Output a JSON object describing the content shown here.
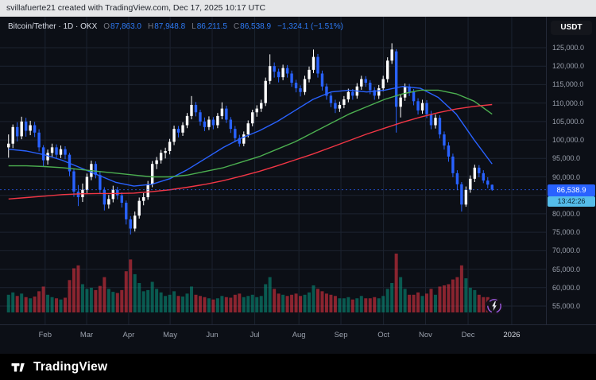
{
  "attribution": "svillafuerte21 created with TradingView.com, Dec 17, 2025 10:17 UTC",
  "header": {
    "currency_label": "USDT"
  },
  "legend": {
    "title": "Bitcoin/Tether · 1D · OKX",
    "ohlc": [
      {
        "label": "O",
        "value": "87,863.0"
      },
      {
        "label": "H",
        "value": "87,948.8"
      },
      {
        "label": "L",
        "value": "86,211.5"
      },
      {
        "label": "C",
        "value": "86,538.9"
      }
    ],
    "change": "−1,324.1 (−1.51%)"
  },
  "price_scale": {
    "current_price": "86,538.9",
    "countdown": "13:42:26"
  },
  "footer": {
    "logo_text": "TradingView"
  },
  "colors": {
    "up": "#ffffff",
    "down": "#2962ff",
    "vol_up": "rgba(8,153,129,0.55)",
    "vol_down": "rgba(242,54,69,0.55)",
    "grid": "#1c2330",
    "axis_text": "#9aa0ac",
    "price_label_bg": "#2962ff",
    "countdown_bg": "#55bdea",
    "ohlc_value": "#2e7bf6"
  },
  "chart_data": {
    "type": "candlestick",
    "title": "Bitcoin/Tether · 1D · OKX",
    "exchange": "OKX",
    "interval": "1D",
    "quote_currency": "USDT",
    "x_range": "mid-Jan 2025 to Dec 17, 2025",
    "last_price": 86538.9,
    "price_factor": 1000,
    "grid": true,
    "y_ticks": [
      125000,
      120000,
      115000,
      110000,
      105000,
      100000,
      95000,
      90000,
      85000,
      80000,
      75000,
      70000,
      65000,
      60000,
      55000
    ],
    "y_tick_labels": [
      "125,000.0",
      "120,000.0",
      "115,000.0",
      "110,000.0",
      "105,000.0",
      "100,000.0",
      "95,000.0",
      "90,000.0",
      "85,000.0",
      "80,000.0",
      "75,000.0",
      "70,000.0",
      "65,000.0",
      "60,000.0",
      "55,000.0"
    ],
    "x_ticks": [
      {
        "label": "Feb",
        "pos": 0.072
      },
      {
        "label": "Mar",
        "pos": 0.149
      },
      {
        "label": "Apr",
        "pos": 0.227
      },
      {
        "label": "May",
        "pos": 0.304
      },
      {
        "label": "Jun",
        "pos": 0.382
      },
      {
        "label": "Jul",
        "pos": 0.461
      },
      {
        "label": "Aug",
        "pos": 0.543
      },
      {
        "label": "Sep",
        "pos": 0.621
      },
      {
        "label": "Oct",
        "pos": 0.7
      },
      {
        "label": "Nov",
        "pos": 0.778
      },
      {
        "label": "Dec",
        "pos": 0.857
      },
      {
        "label": "2026",
        "pos": 0.938,
        "major": true
      }
    ],
    "bars_format": [
      "open_k",
      "high_k",
      "low_k",
      "close_k",
      "volume_relative_0_100"
    ],
    "bars": [
      [
        98,
        101.5,
        95.2,
        99,
        30
      ],
      [
        99,
        104.2,
        97.8,
        103.5,
        34
      ],
      [
        103.5,
        104.8,
        99.6,
        101,
        28
      ],
      [
        101,
        106.3,
        100.2,
        105,
        32
      ],
      [
        105,
        106,
        100.9,
        102.5,
        26
      ],
      [
        102.5,
        105.2,
        101.3,
        104,
        24
      ],
      [
        104,
        104.9,
        100.8,
        102,
        27
      ],
      [
        102,
        102.9,
        96.9,
        98,
        36
      ],
      [
        98,
        98.6,
        92.8,
        94.5,
        44
      ],
      [
        94.5,
        97.4,
        93.3,
        96.5,
        30
      ],
      [
        96.5,
        99,
        95.4,
        98,
        26
      ],
      [
        98,
        98.8,
        94.9,
        96,
        24
      ],
      [
        96,
        98.5,
        95.1,
        97.5,
        22
      ],
      [
        97.5,
        98.3,
        94.8,
        96,
        25
      ],
      [
        96,
        96.5,
        90.2,
        91.5,
        55
      ],
      [
        91.5,
        92.3,
        84.6,
        86,
        75
      ],
      [
        86,
        87.8,
        82.1,
        84.5,
        80
      ],
      [
        84.5,
        88.2,
        83.2,
        86.5,
        48
      ],
      [
        86.5,
        90.9,
        85.6,
        90,
        40
      ],
      [
        90,
        94.4,
        89.1,
        93.5,
        42
      ],
      [
        93.5,
        94.2,
        89.6,
        90.5,
        38
      ],
      [
        90.5,
        91.3,
        85.4,
        86.5,
        45
      ],
      [
        86.5,
        87.2,
        80.9,
        82.5,
        60
      ],
      [
        82.5,
        85.1,
        81.4,
        84,
        40
      ],
      [
        84,
        87.6,
        83.1,
        86.5,
        35
      ],
      [
        86.5,
        87.3,
        83.9,
        85,
        33
      ],
      [
        85,
        85.8,
        81.7,
        83,
        38
      ],
      [
        83,
        83.6,
        77.1,
        78.5,
        70
      ],
      [
        78.5,
        79.4,
        74.4,
        76,
        90
      ],
      [
        76,
        80.6,
        75.2,
        79.5,
        65
      ],
      [
        79.5,
        84.4,
        78.7,
        83.5,
        50
      ],
      [
        83.5,
        85.6,
        82.3,
        84.5,
        36
      ],
      [
        84.5,
        88.9,
        83.8,
        88,
        38
      ],
      [
        88,
        94.3,
        87.2,
        93.5,
        52
      ],
      [
        93.5,
        95.4,
        92.1,
        94.5,
        40
      ],
      [
        94.5,
        97.3,
        93.6,
        96.5,
        34
      ],
      [
        96.5,
        97.9,
        95,
        97,
        28
      ],
      [
        97,
        100.3,
        96.1,
        99.5,
        30
      ],
      [
        99.5,
        103.9,
        98.6,
        103,
        36
      ],
      [
        103,
        103.8,
        100.7,
        102,
        28
      ],
      [
        102,
        104.8,
        101.1,
        104,
        27
      ],
      [
        104,
        107.3,
        103.2,
        106.5,
        32
      ],
      [
        106.5,
        111.9,
        105.6,
        109.5,
        44
      ],
      [
        109.5,
        110.3,
        106.4,
        107.5,
        30
      ],
      [
        107.5,
        108.2,
        103.9,
        105,
        28
      ],
      [
        105,
        106.1,
        102.4,
        103.5,
        26
      ],
      [
        103.5,
        106.4,
        102.7,
        105.5,
        24
      ],
      [
        105.5,
        106.2,
        102.9,
        104,
        22
      ],
      [
        104,
        107.3,
        103.2,
        106.5,
        24
      ],
      [
        106.5,
        110.2,
        105.6,
        108.5,
        28
      ],
      [
        108.5,
        109.3,
        104.6,
        105.5,
        26
      ],
      [
        105.5,
        106.2,
        101.9,
        103,
        25
      ],
      [
        103,
        103.8,
        99.4,
        100.5,
        30
      ],
      [
        100.5,
        101.4,
        98.2,
        99,
        32
      ],
      [
        99,
        102.3,
        98.3,
        101.5,
        26
      ],
      [
        101.5,
        105.3,
        100.7,
        104.5,
        28
      ],
      [
        104.5,
        108.2,
        103.7,
        107.5,
        30
      ],
      [
        107.5,
        109.4,
        106.3,
        108.5,
        26
      ],
      [
        108.5,
        110.9,
        107.6,
        110,
        28
      ],
      [
        110,
        116.9,
        109.2,
        116,
        48
      ],
      [
        116,
        123.2,
        115.1,
        120,
        60
      ],
      [
        120,
        121,
        116.9,
        118.5,
        40
      ],
      [
        118.5,
        119.3,
        115.6,
        117,
        32
      ],
      [
        117,
        120.4,
        116.2,
        119.5,
        30
      ],
      [
        119.5,
        120.3,
        116.9,
        118,
        28
      ],
      [
        118,
        118.8,
        114.4,
        115.5,
        30
      ],
      [
        115.5,
        116.3,
        112.9,
        114,
        32
      ],
      [
        114,
        114.8,
        111.8,
        113,
        28
      ],
      [
        113,
        117.4,
        112.2,
        116.5,
        30
      ],
      [
        116.5,
        119.9,
        115.6,
        119,
        34
      ],
      [
        119,
        124.5,
        118.1,
        122.5,
        46
      ],
      [
        122.5,
        123.3,
        116.9,
        118,
        40
      ],
      [
        118,
        118.8,
        113.4,
        114.5,
        36
      ],
      [
        114.5,
        115.3,
        110.9,
        112,
        32
      ],
      [
        112,
        112.8,
        108.9,
        110,
        30
      ],
      [
        110,
        110.9,
        107.3,
        108.5,
        28
      ],
      [
        108.5,
        110.4,
        107.6,
        109.5,
        24
      ],
      [
        109.5,
        111.9,
        108.6,
        111,
        24
      ],
      [
        111,
        113.9,
        110.2,
        113,
        26
      ],
      [
        113,
        113.8,
        110.9,
        112,
        22
      ],
      [
        112,
        115.4,
        111.2,
        114.5,
        24
      ],
      [
        114.5,
        117.4,
        113.6,
        116.5,
        28
      ],
      [
        116.5,
        117.3,
        114.4,
        115.5,
        24
      ],
      [
        115.5,
        116.2,
        112.4,
        113.5,
        24
      ],
      [
        113.5,
        114.3,
        110.9,
        112,
        26
      ],
      [
        112,
        114.9,
        111.1,
        114,
        24
      ],
      [
        114,
        117.4,
        113.2,
        116.5,
        28
      ],
      [
        116.5,
        122.4,
        115.6,
        121.5,
        40
      ],
      [
        121.5,
        126.2,
        120.6,
        124.5,
        50
      ],
      [
        124,
        124.6,
        102,
        109,
        100
      ],
      [
        109,
        112.4,
        106.1,
        111.5,
        60
      ],
      [
        111.5,
        115.3,
        110.6,
        114.5,
        40
      ],
      [
        114.5,
        115.2,
        111.9,
        113,
        30
      ],
      [
        113,
        113.8,
        109.4,
        110.5,
        30
      ],
      [
        110.5,
        111.3,
        106.9,
        108,
        34
      ],
      [
        108,
        110.9,
        107.1,
        110,
        28
      ],
      [
        110,
        110.8,
        105.9,
        107,
        32
      ],
      [
        107,
        107.9,
        102.9,
        104,
        40
      ],
      [
        104,
        106.9,
        103.1,
        106,
        30
      ],
      [
        106,
        106.7,
        100.4,
        101.5,
        44
      ],
      [
        101.5,
        102.3,
        97.4,
        98.5,
        46
      ],
      [
        98.5,
        99.4,
        94.1,
        95.5,
        48
      ],
      [
        95.5,
        96.3,
        89.9,
        91,
        56
      ],
      [
        91,
        91.8,
        86.4,
        88,
        60
      ],
      [
        88,
        88.6,
        80.6,
        82.5,
        80
      ],
      [
        82.5,
        87.4,
        81.9,
        86.5,
        58
      ],
      [
        86.5,
        90.4,
        85.7,
        89.5,
        42
      ],
      [
        89.5,
        93.3,
        88.6,
        92.5,
        38
      ],
      [
        92.5,
        93.2,
        89.9,
        91,
        30
      ],
      [
        91,
        91.8,
        88.3,
        89,
        26
      ],
      [
        89,
        89.9,
        86.9,
        87.9,
        26
      ],
      [
        87.863,
        87.949,
        86.212,
        86.539,
        24
      ]
    ],
    "ma_lines": [
      {
        "name": "ma-line-fast",
        "color": "#2962ff",
        "values": [
          97.5,
          97,
          96,
          94.5,
          92.5,
          90.5,
          88.5,
          87.5,
          88,
          89.5,
          92,
          95,
          98,
          100.5,
          102.5,
          105,
          108,
          111,
          113,
          113.5,
          113,
          113.5,
          114.5,
          114,
          111.5,
          107,
          100,
          93.5
        ]
      },
      {
        "name": "ma-line-mid",
        "color": "#4caf50",
        "values": [
          93,
          93,
          92.8,
          92.5,
          92,
          91.5,
          91,
          90.5,
          90,
          90,
          90.5,
          91.5,
          92.5,
          94,
          95.5,
          97.5,
          99.5,
          102,
          104.5,
          107,
          109,
          111,
          112.5,
          113.5,
          113.5,
          112.5,
          110.5,
          107
        ]
      },
      {
        "name": "ma-line-slow",
        "color": "#f23645",
        "values": [
          84,
          84.4,
          84.8,
          85.2,
          85.4,
          85.5,
          85.5,
          85.6,
          86,
          86.5,
          87.2,
          88,
          89,
          90.2,
          91.5,
          93,
          94.6,
          96.2,
          98,
          99.8,
          101.6,
          103.2,
          104.8,
          106.2,
          107.4,
          108.4,
          109.1,
          109.6
        ]
      }
    ]
  }
}
